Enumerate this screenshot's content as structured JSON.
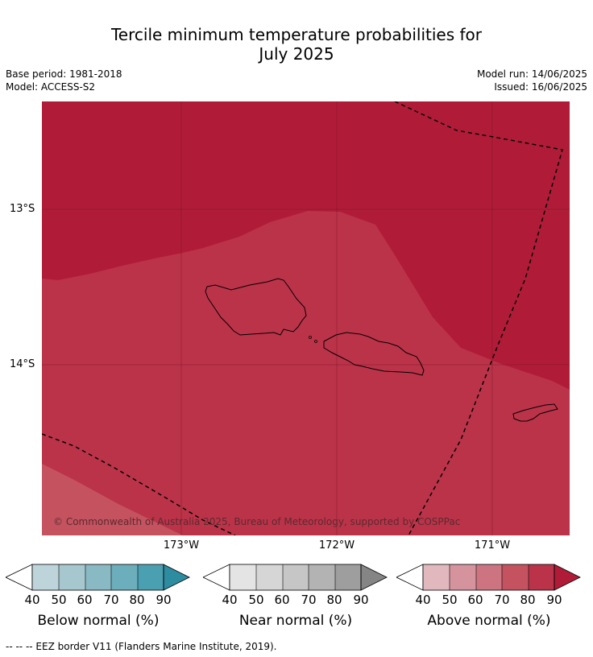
{
  "title_line1": "Tercile minimum temperature probabilities for",
  "title_line2": "July 2025",
  "meta": {
    "base_period": "Base period: 1981-2018",
    "model": "Model: ACCESS-S2",
    "model_run": "Model run: 14/06/2025",
    "issued": "Issued: 16/06/2025"
  },
  "map": {
    "copyright": "© Commonwealth of Australia 2025, Bureau of Meteorology, supported by COSPPac",
    "lon_labels": [
      "173°W",
      "172°W",
      "171°W"
    ],
    "lat_labels": [
      "13°S",
      "14°S"
    ],
    "colors": {
      "above_90": "#b01c38",
      "above_80": "#bb3349",
      "above_70": "#c4535f"
    }
  },
  "legends": [
    {
      "title": "Below normal (%)",
      "ticks": [
        "40",
        "50",
        "60",
        "70",
        "80",
        "90"
      ],
      "colors": [
        "#bdd4da",
        "#a5c7cd",
        "#89b9c3",
        "#6caebb",
        "#4a9fb0",
        "#2e8ca1"
      ]
    },
    {
      "title": "Near normal (%)",
      "ticks": [
        "40",
        "50",
        "60",
        "70",
        "80",
        "90"
      ],
      "colors": [
        "#e4e4e4",
        "#d6d6d6",
        "#c6c6c6",
        "#b3b3b3",
        "#9e9e9e",
        "#858585"
      ]
    },
    {
      "title": "Above normal (%)",
      "ticks": [
        "40",
        "50",
        "60",
        "70",
        "80",
        "90"
      ],
      "colors": [
        "#e2b8bf",
        "#d5949d",
        "#cc7580",
        "#c4535f",
        "#bb3349",
        "#b01c38"
      ]
    }
  ],
  "footer": "--  --  -- EEZ border V11 (Flanders Marine Institute, 2019)."
}
